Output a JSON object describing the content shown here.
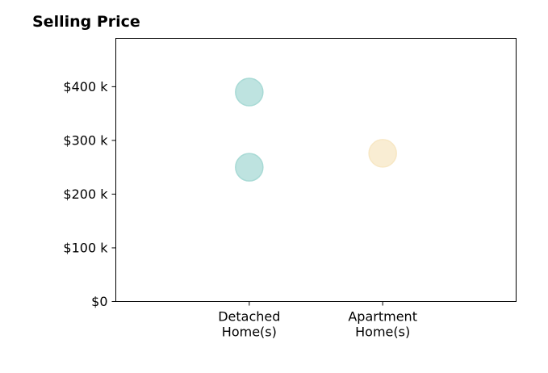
{
  "chart_data": {
    "type": "scatter",
    "title": "Selling Price",
    "categories": [
      "Detached\nHome(s)",
      "Apartment\nHome(s)"
    ],
    "x_positions": [
      1,
      2
    ],
    "xlim": [
      0,
      3
    ],
    "ylim": [
      0,
      490000
    ],
    "y_ticks": [
      0,
      100000,
      200000,
      300000,
      400000
    ],
    "y_tick_labels": [
      "$0",
      "$100 k",
      "$200 k",
      "$300 k",
      "$400 k"
    ],
    "points": [
      {
        "category": "Detached\nHome(s)",
        "x": 1,
        "y": 390000,
        "color": "#a8dad5"
      },
      {
        "category": "Detached\nHome(s)",
        "x": 1,
        "y": 250000,
        "color": "#a8dad5"
      },
      {
        "category": "Apartment\nHome(s)",
        "x": 2,
        "y": 276000,
        "color": "#f7e7c4"
      }
    ],
    "grid": false,
    "legend": "none"
  }
}
